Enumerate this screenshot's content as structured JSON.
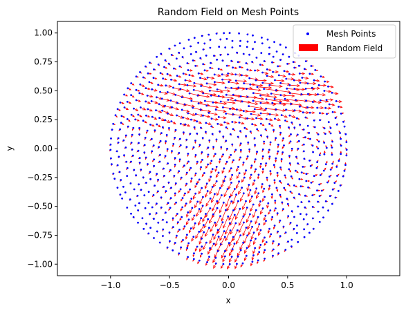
{
  "chart_data": {
    "type": "scatter",
    "title": "Random Field on Mesh Points",
    "xlabel": "x",
    "ylabel": "y",
    "xlim": [
      -1.45,
      1.45
    ],
    "ylim": [
      -1.1,
      1.1
    ],
    "xticks": [
      -1.0,
      -0.5,
      0.0,
      0.5,
      1.0
    ],
    "xtick_labels": [
      "−1.0",
      "−0.5",
      "0.0",
      "0.5",
      "1.0"
    ],
    "yticks": [
      1.0,
      0.75,
      0.5,
      0.25,
      0.0,
      -0.25,
      -0.5,
      -0.75,
      -1.0
    ],
    "ytick_labels": [
      "1.00",
      "0.75",
      "0.50",
      "0.25",
      "0.00",
      "−0.25",
      "−0.50",
      "−0.75",
      "−1.00"
    ],
    "grid": false,
    "legend": {
      "position": "top-right",
      "entries": [
        {
          "label": "Mesh Points",
          "color": "#0000ff",
          "marker": "dot"
        },
        {
          "label": "Random Field",
          "color": "#ff0000",
          "marker": "rect"
        }
      ]
    },
    "mesh": {
      "shape": "unit-disk",
      "approx_point_count": 900,
      "point_color": "#0000ff"
    },
    "field": {
      "color": "#ff0000",
      "features": [
        {
          "kind": "strong-eastward-jet",
          "center": [
            0.2,
            0.45
          ],
          "direction": "east"
        },
        {
          "kind": "vortex",
          "center": [
            0.65,
            -0.05
          ],
          "rotation": "counter-clockwise"
        },
        {
          "kind": "southwest-flow",
          "center": [
            0.0,
            -0.6
          ],
          "direction": "south-west"
        }
      ]
    }
  }
}
